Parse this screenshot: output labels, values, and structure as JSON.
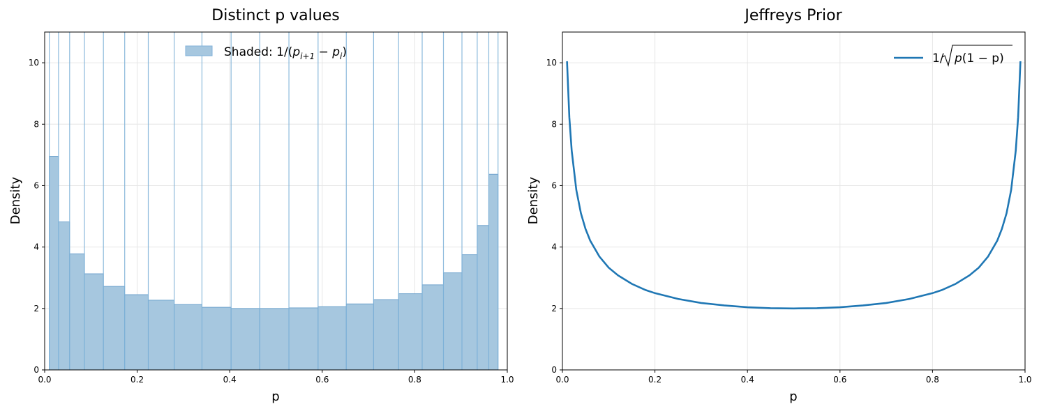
{
  "chart_data": [
    {
      "type": "bar",
      "title": "Distinct p values",
      "xlabel": "p",
      "ylabel": "Density",
      "xlim": [
        0.0,
        1.0
      ],
      "ylim": [
        0,
        11
      ],
      "xticks": [
        "0.0",
        "0.2",
        "0.4",
        "0.6",
        "0.8",
        "1.0"
      ],
      "yticks": [
        "0",
        "2",
        "4",
        "6",
        "8",
        "10"
      ],
      "grid": true,
      "legend_position": "top-center",
      "legend_label": "Shaded: 1/(p_{i+1} − p_i)",
      "legend_parts": {
        "prefix": "Shaded: 1/(",
        "p1": "p",
        "s1": "i+1",
        "minus": " − ",
        "p2": "p",
        "s2": "i",
        "suffix": ")"
      },
      "colors": {
        "fill": "#a6c7df",
        "edge": "#5b96c6",
        "line": "#80b2d8"
      },
      "bin_edges": [
        0.01,
        0.03,
        0.054,
        0.086,
        0.127,
        0.173,
        0.224,
        0.28,
        0.34,
        0.403,
        0.465,
        0.528,
        0.591,
        0.652,
        0.711,
        0.765,
        0.816,
        0.862,
        0.902,
        0.935,
        0.96,
        0.98
      ],
      "values": [
        6.95,
        4.82,
        3.78,
        3.13,
        2.72,
        2.45,
        2.27,
        2.13,
        2.04,
        2.0,
        2.0,
        2.02,
        2.06,
        2.15,
        2.29,
        2.48,
        2.77,
        3.16,
        3.75,
        4.7,
        6.37
      ]
    },
    {
      "type": "line",
      "title": "Jeffreys Prior",
      "xlabel": "p",
      "ylabel": "Density",
      "xlim": [
        0.0,
        1.0
      ],
      "ylim": [
        0,
        11
      ],
      "xticks": [
        "0.0",
        "0.2",
        "0.4",
        "0.6",
        "0.8",
        "1.0"
      ],
      "yticks": [
        "0",
        "2",
        "4",
        "6",
        "8",
        "10"
      ],
      "grid": true,
      "legend_position": "top-right",
      "legend_label": "1/√(p(1 − p))",
      "legend_parts": {
        "prefix": "1/",
        "body": "p(1 − p)"
      },
      "colors": {
        "line": "#1f77b4"
      },
      "x": [
        0.01,
        0.015,
        0.02,
        0.03,
        0.04,
        0.05,
        0.06,
        0.08,
        0.1,
        0.12,
        0.15,
        0.18,
        0.2,
        0.25,
        0.3,
        0.35,
        0.4,
        0.45,
        0.5,
        0.55,
        0.6,
        0.65,
        0.7,
        0.75,
        0.8,
        0.82,
        0.85,
        0.88,
        0.9,
        0.92,
        0.94,
        0.95,
        0.96,
        0.97,
        0.98,
        0.985,
        0.99
      ],
      "y": [
        10.05,
        8.23,
        7.14,
        5.86,
        5.1,
        4.59,
        4.21,
        3.69,
        3.33,
        3.08,
        2.8,
        2.6,
        2.5,
        2.31,
        2.18,
        2.1,
        2.04,
        2.01,
        2.0,
        2.01,
        2.04,
        2.1,
        2.18,
        2.31,
        2.5,
        2.6,
        2.8,
        3.08,
        3.33,
        3.69,
        4.21,
        4.59,
        5.1,
        5.86,
        7.14,
        8.23,
        10.05
      ]
    }
  ]
}
